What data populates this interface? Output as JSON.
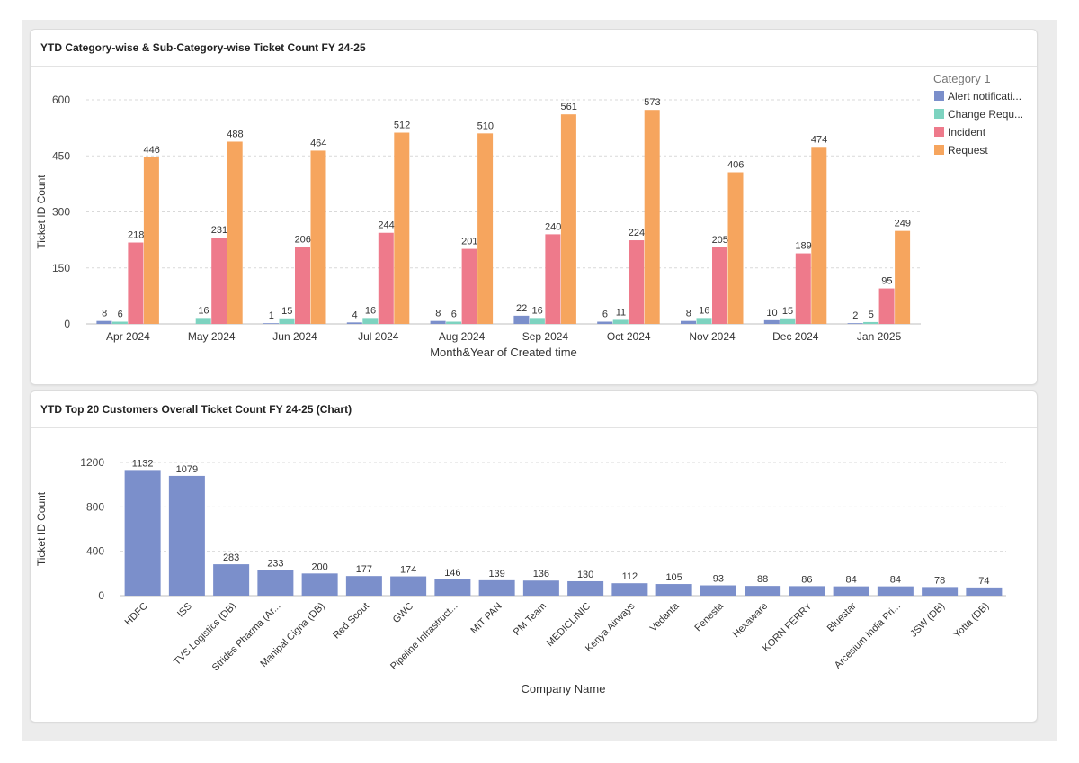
{
  "panels": {
    "top": {
      "title": "YTD Category-wise & Sub-Category-wise Ticket Count FY 24-25"
    },
    "bottom": {
      "title": "YTD Top 20 Customers Overall Ticket Count FY 24-25 (Chart)"
    }
  },
  "chart_data": [
    {
      "type": "bar",
      "title": "YTD Category-wise & Sub-Category-wise Ticket Count FY 24-25",
      "xlabel": "Month&Year of Created time",
      "ylabel": "Ticket ID Count",
      "ylim": [
        0,
        600
      ],
      "yticks": [
        0,
        150,
        300,
        450,
        600
      ],
      "ytick_labels": [
        "0",
        "150",
        "300",
        "450",
        "600"
      ],
      "grid": true,
      "legend": {
        "title": "Category 1",
        "position": "right"
      },
      "categories": [
        "Apr 2024",
        "May 2024",
        "Jun 2024",
        "Jul 2024",
        "Aug 2024",
        "Sep 2024",
        "Oct 2024",
        "Nov 2024",
        "Dec 2024",
        "Jan 2025"
      ],
      "series": [
        {
          "name": "Alert notificati...",
          "color": "#7b8fcb",
          "values": [
            8,
            null,
            1,
            4,
            8,
            22,
            6,
            8,
            10,
            2
          ]
        },
        {
          "name": "Change Requ...",
          "color": "#7dd3c0",
          "values": [
            6,
            16,
            15,
            16,
            6,
            16,
            11,
            16,
            15,
            5
          ]
        },
        {
          "name": "Incident",
          "color": "#ee7a8b",
          "values": [
            218,
            231,
            206,
            244,
            201,
            240,
            224,
            205,
            189,
            95
          ]
        },
        {
          "name": "Request",
          "color": "#f6a55e",
          "values": [
            446,
            488,
            464,
            512,
            510,
            561,
            573,
            406,
            474,
            249
          ]
        }
      ]
    },
    {
      "type": "bar",
      "title": "YTD Top 20 Customers Overall Ticket Count FY 24-25 (Chart)",
      "xlabel": "Company Name",
      "ylabel": "Ticket ID Count",
      "ylim": [
        0,
        1200
      ],
      "yticks": [
        0,
        400,
        800,
        1200
      ],
      "ytick_labels": [
        "0",
        "400",
        "800",
        "1200"
      ],
      "grid": true,
      "color": "#7b8fcb",
      "categories": [
        "HDFC",
        "ISS",
        "TVS Logistics (DB)",
        "Strides Pharma (Ar...",
        "Manipal Cigna (DB)",
        "Red Scout",
        "GWC",
        "Pipeline Infrastruct...",
        "MIT PAN",
        "PM Team",
        "MEDICLINIC",
        "Kenya Airways",
        "Vedanta",
        "Fenesta",
        "Hexaware",
        "KORN FERRY",
        "Bluestar",
        "Arcesium India Pri...",
        "JSW (DB)",
        "Yotta (DB)"
      ],
      "values": [
        1132,
        1079,
        283,
        233,
        200,
        177,
        174,
        146,
        139,
        136,
        130,
        112,
        105,
        93,
        88,
        86,
        84,
        84,
        78,
        74
      ]
    }
  ]
}
